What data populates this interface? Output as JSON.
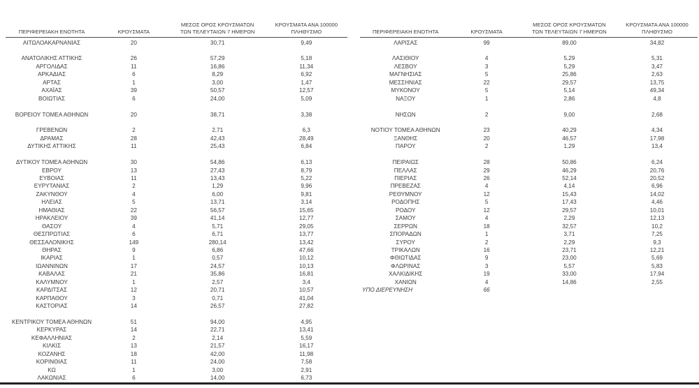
{
  "columns": [
    {
      "key": "region",
      "lines": [
        "ΠΕΡΙΦΕΡΕΙΑΚΗ ΕΝΟΤΗΤΑ"
      ]
    },
    {
      "key": "cases",
      "lines": [
        "ΚΡΟΥΣΜΑΤΑ"
      ]
    },
    {
      "key": "avg7",
      "lines": [
        "ΜΕΣΟΣ ΟΡΟΣ ΚΡΟΥΣΜΑΤΩΝ",
        "ΤΩΝ ΤΕΛΕΥΤΑΙΩΝ 7 ΗΜΕΡΩΝ"
      ]
    },
    {
      "key": "per100k",
      "lines": [
        "ΚΡΟΥΣΜΑΤΑ ΑΝΑ 100000",
        "ΠΛΗΘΥΣΜΟ"
      ]
    }
  ],
  "tables": [
    {
      "id": "left",
      "groups": [
        [
          {
            "region": "ΑΙΤΩΛΟΑΚΑΡΝΑΝΙΑΣ",
            "cases": "20",
            "avg7": "30,71",
            "per100k": "9,49"
          }
        ],
        [
          {
            "region": "ΑΝΑΤΟΛΙΚΗΣ ΑΤΤΙΚΗΣ",
            "cases": "26",
            "avg7": "57,29",
            "per100k": "5,18"
          },
          {
            "region": "ΑΡΓΟΛΙΔΑΣ",
            "cases": "11",
            "avg7": "16,86",
            "per100k": "11,34"
          },
          {
            "region": "ΑΡΚΑΔΙΑΣ",
            "cases": "6",
            "avg7": "8,29",
            "per100k": "6,92"
          },
          {
            "region": "ΑΡΤΑΣ",
            "cases": "1",
            "avg7": "3,00",
            "per100k": "1,47"
          },
          {
            "region": "ΑΧΑΪΑΣ",
            "cases": "39",
            "avg7": "50,57",
            "per100k": "12,57"
          },
          {
            "region": "ΒΟΙΩΤΙΑΣ",
            "cases": "6",
            "avg7": "24,00",
            "per100k": "5,09"
          }
        ],
        [
          {
            "region": "ΒΟΡΕΙΟΥ ΤΟΜΕΑ ΑΘΗΝΩΝ",
            "cases": "20",
            "avg7": "38,71",
            "per100k": "3,38"
          }
        ],
        [
          {
            "region": "ΓΡΕΒΕΝΩΝ",
            "cases": "2",
            "avg7": "2,71",
            "per100k": "6,3"
          },
          {
            "region": "ΔΡΑΜΑΣ",
            "cases": "28",
            "avg7": "42,43",
            "per100k": "28,49"
          },
          {
            "region": "ΔΥΤΙΚΗΣ ΑΤΤΙΚΗΣ",
            "cases": "11",
            "avg7": "25,43",
            "per100k": "6,84"
          }
        ],
        [
          {
            "region": "ΔΥΤΙΚΟΥ ΤΟΜΕΑ ΑΘΗΝΩΝ",
            "cases": "30",
            "avg7": "54,86",
            "per100k": "6,13"
          },
          {
            "region": "ΕΒΡΟΥ",
            "cases": "13",
            "avg7": "27,43",
            "per100k": "8,79"
          },
          {
            "region": "ΕΥΒΟΙΑΣ",
            "cases": "11",
            "avg7": "13,43",
            "per100k": "5,22"
          },
          {
            "region": "ΕΥΡΥΤΑΝΙΑΣ",
            "cases": "2",
            "avg7": "1,29",
            "per100k": "9,96"
          },
          {
            "region": "ΖΑΚΥΝΘΟΥ",
            "cases": "4",
            "avg7": "6,00",
            "per100k": "9,81"
          },
          {
            "region": "ΗΛΕΙΑΣ",
            "cases": "5",
            "avg7": "13,71",
            "per100k": "3,14"
          },
          {
            "region": "ΗΜΑΘΙΑΣ",
            "cases": "22",
            "avg7": "56,57",
            "per100k": "15,65"
          },
          {
            "region": "ΗΡΑΚΛΕΙΟΥ",
            "cases": "39",
            "avg7": "41,14",
            "per100k": "12,77"
          },
          {
            "region": "ΘΑΣΟΥ",
            "cases": "4",
            "avg7": "5,71",
            "per100k": "29,05"
          },
          {
            "region": "ΘΕΣΠΡΩΤΙΑΣ",
            "cases": "6",
            "avg7": "6,71",
            "per100k": "13,77"
          },
          {
            "region": "ΘΕΣΣΑΛΟΝΙΚΗΣ",
            "cases": "149",
            "avg7": "280,14",
            "per100k": "13,42"
          },
          {
            "region": "ΘΗΡΑΣ",
            "cases": "9",
            "avg7": "6,86",
            "per100k": "47,66"
          },
          {
            "region": "ΙΚΑΡΙΑΣ",
            "cases": "1",
            "avg7": "0,57",
            "per100k": "10,12"
          },
          {
            "region": "ΙΩΑΝΝΙΝΩΝ",
            "cases": "17",
            "avg7": "24,57",
            "per100k": "10,13"
          },
          {
            "region": "ΚΑΒΑΛΑΣ",
            "cases": "21",
            "avg7": "35,86",
            "per100k": "16,81"
          },
          {
            "region": "ΚΑΛΥΜΝΟΥ",
            "cases": "1",
            "avg7": "2,57",
            "per100k": "3,4"
          },
          {
            "region": "ΚΑΡΔΙΤΣΑΣ",
            "cases": "12",
            "avg7": "20,71",
            "per100k": "10,57"
          },
          {
            "region": "ΚΑΡΠΑΘΟΥ",
            "cases": "3",
            "avg7": "0,71",
            "per100k": "41,04"
          },
          {
            "region": "ΚΑΣΤΟΡΙΑΣ",
            "cases": "14",
            "avg7": "26,57",
            "per100k": "27,82"
          }
        ],
        [
          {
            "region": "ΚΕΝΤΡΙΚΟΥ ΤΟΜΕΑ ΑΘΗΝΩΝ",
            "cases": "51",
            "avg7": "94,00",
            "per100k": "4,95"
          },
          {
            "region": "ΚΕΡΚΥΡΑΣ",
            "cases": "14",
            "avg7": "22,71",
            "per100k": "13,41"
          },
          {
            "region": "ΚΕΦΑΛΛΗΝΙΑΣ",
            "cases": "2",
            "avg7": "2,14",
            "per100k": "5,59"
          },
          {
            "region": "ΚΙΛΚΙΣ",
            "cases": "13",
            "avg7": "21,57",
            "per100k": "16,17"
          },
          {
            "region": "ΚΟΖΑΝΗΣ",
            "cases": "18",
            "avg7": "42,00",
            "per100k": "11,98"
          },
          {
            "region": "ΚΟΡΙΝΘΙΑΣ",
            "cases": "11",
            "avg7": "24,00",
            "per100k": "7,58"
          },
          {
            "region": "ΚΩ",
            "cases": "1",
            "avg7": "3,00",
            "per100k": "2,91"
          },
          {
            "region": "ΛΑΚΩΝΙΑΣ",
            "cases": "6",
            "avg7": "14,00",
            "per100k": "6,73"
          }
        ]
      ]
    },
    {
      "id": "right",
      "groups": [
        [
          {
            "region": "ΛΑΡΙΣΑΣ",
            "cases": "99",
            "avg7": "89,00",
            "per100k": "34,82"
          }
        ],
        [
          {
            "region": "ΛΑΣΙΘΙΟΥ",
            "cases": "4",
            "avg7": "5,29",
            "per100k": "5,31"
          },
          {
            "region": "ΛΕΣΒΟΥ",
            "cases": "3",
            "avg7": "5,29",
            "per100k": "3,47"
          },
          {
            "region": "ΜΑΓΝΗΣΙΑΣ",
            "cases": "5",
            "avg7": "25,86",
            "per100k": "2,63"
          },
          {
            "region": "ΜΕΣΣΗΝΙΑΣ",
            "cases": "22",
            "avg7": "29,57",
            "per100k": "13,75"
          },
          {
            "region": "ΜΥΚΟΝΟΥ",
            "cases": "5",
            "avg7": "5,14",
            "per100k": "49,34"
          },
          {
            "region": "ΝΑΞΟΥ",
            "cases": "1",
            "avg7": "2,86",
            "per100k": "4,8"
          }
        ],
        [
          {
            "region": "ΝΗΣΩΝ",
            "cases": "2",
            "avg7": "9,00",
            "per100k": "2,68"
          }
        ],
        [
          {
            "region": "ΝΟΤΙΟΥ ΤΟΜΕΑ ΑΘΗΝΩΝ",
            "cases": "23",
            "avg7": "40,29",
            "per100k": "4,34"
          },
          {
            "region": "ΞΑΝΘΗΣ",
            "cases": "20",
            "avg7": "46,57",
            "per100k": "17,98"
          },
          {
            "region": "ΠΑΡΟΥ",
            "cases": "2",
            "avg7": "1,29",
            "per100k": "13,4"
          }
        ],
        [
          {
            "region": "ΠΕΙΡΑΙΩΣ",
            "cases": "28",
            "avg7": "50,86",
            "per100k": "6,24"
          },
          {
            "region": "ΠΕΛΛΑΣ",
            "cases": "29",
            "avg7": "46,29",
            "per100k": "20,76"
          },
          {
            "region": "ΠΙΕΡΙΑΣ",
            "cases": "26",
            "avg7": "52,14",
            "per100k": "20,52"
          },
          {
            "region": "ΠΡΕΒΕΖΑΣ",
            "cases": "4",
            "avg7": "4,14",
            "per100k": "6,96"
          },
          {
            "region": "ΡΕΘΥΜΝΟΥ",
            "cases": "12",
            "avg7": "15,43",
            "per100k": "14,02"
          },
          {
            "region": "ΡΟΔΟΠΗΣ",
            "cases": "5",
            "avg7": "17,43",
            "per100k": "4,46"
          },
          {
            "region": "ΡΟΔΟΥ",
            "cases": "12",
            "avg7": "29,57",
            "per100k": "10,01"
          },
          {
            "region": "ΣΑΜΟΥ",
            "cases": "4",
            "avg7": "2,29",
            "per100k": "12,13"
          },
          {
            "region": "ΣΕΡΡΩΝ",
            "cases": "18",
            "avg7": "32,57",
            "per100k": "10,2"
          },
          {
            "region": "ΣΠΟΡΑΔΩΝ",
            "cases": "1",
            "avg7": "3,71",
            "per100k": "7,25"
          },
          {
            "region": "ΣΥΡΟΥ",
            "cases": "2",
            "avg7": "2,29",
            "per100k": "9,3"
          },
          {
            "region": "ΤΡΙΚΑΛΩΝ",
            "cases": "16",
            "avg7": "23,71",
            "per100k": "12,21"
          },
          {
            "region": "ΦΘΙΩΤΙΔΑΣ",
            "cases": "9",
            "avg7": "23,00",
            "per100k": "5,69"
          },
          {
            "region": "ΦΛΩΡΙΝΑΣ",
            "cases": "3",
            "avg7": "5,57",
            "per100k": "5,83"
          },
          {
            "region": "ΧΑΛΚΙΔΙΚΗΣ",
            "cases": "19",
            "avg7": "33,00",
            "per100k": "17,94"
          },
          {
            "region": "ΧΑΝΙΩΝ",
            "cases": "4",
            "avg7": "14,86",
            "per100k": "2,55"
          },
          {
            "region": "ΥΠΟ ΔΙΕΡΕΥΝΗΣΗ",
            "cases": "66",
            "avg7": "",
            "per100k": "",
            "italic": true,
            "align": "left"
          }
        ]
      ]
    }
  ],
  "rules": {
    "header_rule_color": "#4a4a4a",
    "bottom_rule_color": "#222222"
  }
}
